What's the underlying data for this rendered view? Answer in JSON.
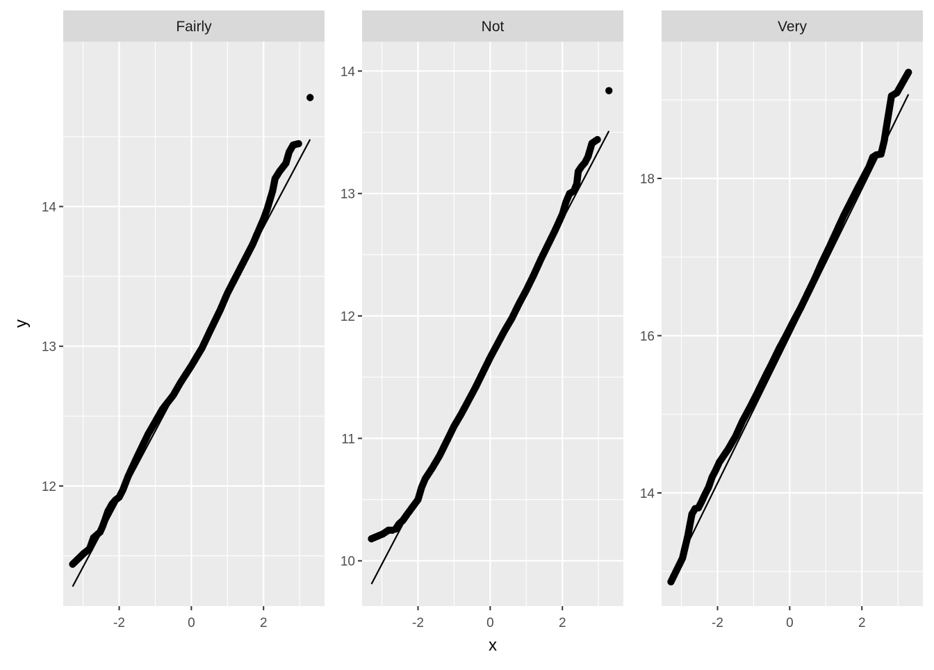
{
  "chart_data": {
    "type": "scatter",
    "subtype": "qq-plot-facets",
    "xlabel": "x",
    "ylabel": "y",
    "colors": {
      "panel_bg": "#ebebeb",
      "grid": "#ffffff",
      "strip_bg": "#d9d9d9",
      "points": "#000000",
      "line": "#000000",
      "text": "#4d4d4d"
    },
    "legend": "none",
    "facets": [
      {
        "label": "Fairly",
        "xlim": [
          -3.55,
          3.69
        ],
        "ylim": [
          11.14,
          15.18
        ],
        "x_ticks": [
          -2,
          0,
          2
        ],
        "y_ticks": [
          12,
          13,
          14
        ],
        "x_tick_labels": [
          "-2",
          "0",
          "2"
        ],
        "y_tick_labels": [
          "12",
          "13",
          "14"
        ],
        "reference_line": {
          "x": [
            -3.29,
            3.29
          ],
          "y": [
            11.28,
            14.48
          ]
        },
        "points": [
          [
            -3.29,
            11.44
          ],
          [
            -2.97,
            11.52
          ],
          [
            -2.82,
            11.55
          ],
          [
            -2.71,
            11.63
          ],
          [
            -2.62,
            11.65
          ],
          [
            -2.53,
            11.67
          ],
          [
            -2.46,
            11.71
          ],
          [
            -2.39,
            11.76
          ],
          [
            -2.31,
            11.82
          ],
          [
            -2.2,
            11.87
          ],
          [
            -2.1,
            11.9
          ],
          [
            -2.0,
            11.92
          ],
          [
            -1.9,
            11.97
          ],
          [
            -1.75,
            12.07
          ],
          [
            -1.5,
            12.21
          ],
          [
            -1.2,
            12.37
          ],
          [
            -1.0,
            12.46
          ],
          [
            -0.8,
            12.55
          ],
          [
            -0.5,
            12.65
          ],
          [
            -0.3,
            12.74
          ],
          [
            0.0,
            12.86
          ],
          [
            0.3,
            12.99
          ],
          [
            0.5,
            13.1
          ],
          [
            0.8,
            13.26
          ],
          [
            1.0,
            13.38
          ],
          [
            1.2,
            13.48
          ],
          [
            1.5,
            13.63
          ],
          [
            1.7,
            13.73
          ],
          [
            1.85,
            13.82
          ],
          [
            2.0,
            13.91
          ],
          [
            2.1,
            13.98
          ],
          [
            2.18,
            14.05
          ],
          [
            2.25,
            14.11
          ],
          [
            2.32,
            14.2
          ],
          [
            2.44,
            14.25
          ],
          [
            2.53,
            14.28
          ],
          [
            2.62,
            14.31
          ],
          [
            2.71,
            14.39
          ],
          [
            2.82,
            14.44
          ],
          [
            2.97,
            14.45
          ],
          [
            3.29,
            14.78
          ]
        ]
      },
      {
        "label": "Not",
        "xlim": [
          -3.55,
          3.69
        ],
        "ylim": [
          9.63,
          14.24
        ],
        "x_ticks": [
          -2,
          0,
          2
        ],
        "y_ticks": [
          10,
          11,
          12,
          13,
          14
        ],
        "x_tick_labels": [
          "-2",
          "0",
          "2"
        ],
        "y_tick_labels": [
          "10",
          "11",
          "12",
          "13",
          "14"
        ],
        "reference_line": {
          "x": [
            -3.29,
            3.29
          ],
          "y": [
            9.81,
            13.51
          ]
        },
        "points": [
          [
            -3.29,
            10.18
          ],
          [
            -2.97,
            10.22
          ],
          [
            -2.82,
            10.25
          ],
          [
            -2.71,
            10.25
          ],
          [
            -2.62,
            10.26
          ],
          [
            -2.53,
            10.3
          ],
          [
            -2.42,
            10.33
          ],
          [
            -2.3,
            10.38
          ],
          [
            -2.2,
            10.42
          ],
          [
            -2.1,
            10.46
          ],
          [
            -2.0,
            10.5
          ],
          [
            -1.9,
            10.6
          ],
          [
            -1.8,
            10.67
          ],
          [
            -1.6,
            10.76
          ],
          [
            -1.4,
            10.86
          ],
          [
            -1.2,
            10.98
          ],
          [
            -1.0,
            11.1
          ],
          [
            -0.8,
            11.2
          ],
          [
            -0.6,
            11.31
          ],
          [
            -0.4,
            11.42
          ],
          [
            -0.2,
            11.54
          ],
          [
            0.0,
            11.66
          ],
          [
            0.2,
            11.77
          ],
          [
            0.4,
            11.88
          ],
          [
            0.6,
            11.98
          ],
          [
            0.8,
            12.1
          ],
          [
            1.0,
            12.21
          ],
          [
            1.2,
            12.33
          ],
          [
            1.4,
            12.46
          ],
          [
            1.6,
            12.58
          ],
          [
            1.8,
            12.7
          ],
          [
            2.0,
            12.83
          ],
          [
            2.1,
            12.93
          ],
          [
            2.2,
            13.0
          ],
          [
            2.32,
            13.02
          ],
          [
            2.4,
            13.08
          ],
          [
            2.44,
            13.18
          ],
          [
            2.53,
            13.22
          ],
          [
            2.62,
            13.25
          ],
          [
            2.71,
            13.3
          ],
          [
            2.82,
            13.41
          ],
          [
            2.97,
            13.44
          ],
          [
            3.29,
            13.84
          ]
        ]
      },
      {
        "label": "Very",
        "xlim": [
          -3.55,
          3.69
        ],
        "ylim": [
          12.56,
          19.74
        ],
        "x_ticks": [
          -2,
          0,
          2
        ],
        "y_ticks": [
          14,
          16,
          18
        ],
        "x_tick_labels": [
          "-2",
          "0",
          "2"
        ],
        "y_tick_labels": [
          "14",
          "16",
          "18"
        ],
        "reference_line": {
          "x": [
            -3.29,
            3.29
          ],
          "y": [
            12.92,
            19.07
          ]
        },
        "points": [
          [
            -3.29,
            12.87
          ],
          [
            -2.97,
            13.17
          ],
          [
            -2.82,
            13.46
          ],
          [
            -2.71,
            13.73
          ],
          [
            -2.62,
            13.8
          ],
          [
            -2.53,
            13.81
          ],
          [
            -2.44,
            13.89
          ],
          [
            -2.35,
            13.98
          ],
          [
            -2.25,
            14.07
          ],
          [
            -2.15,
            14.2
          ],
          [
            -2.05,
            14.29
          ],
          [
            -1.95,
            14.39
          ],
          [
            -1.7,
            14.56
          ],
          [
            -1.5,
            14.72
          ],
          [
            -1.3,
            14.92
          ],
          [
            -1.1,
            15.09
          ],
          [
            -0.9,
            15.27
          ],
          [
            -0.7,
            15.46
          ],
          [
            -0.5,
            15.64
          ],
          [
            -0.3,
            15.83
          ],
          [
            -0.1,
            16.0
          ],
          [
            0.1,
            16.18
          ],
          [
            0.3,
            16.35
          ],
          [
            0.5,
            16.54
          ],
          [
            0.7,
            16.73
          ],
          [
            0.9,
            16.94
          ],
          [
            1.1,
            17.13
          ],
          [
            1.3,
            17.33
          ],
          [
            1.5,
            17.53
          ],
          [
            1.7,
            17.71
          ],
          [
            1.9,
            17.89
          ],
          [
            2.05,
            18.02
          ],
          [
            2.2,
            18.15
          ],
          [
            2.3,
            18.27
          ],
          [
            2.4,
            18.3
          ],
          [
            2.53,
            18.31
          ],
          [
            2.62,
            18.48
          ],
          [
            2.71,
            18.74
          ],
          [
            2.82,
            19.05
          ],
          [
            2.97,
            19.09
          ],
          [
            3.29,
            19.35
          ]
        ]
      }
    ]
  }
}
